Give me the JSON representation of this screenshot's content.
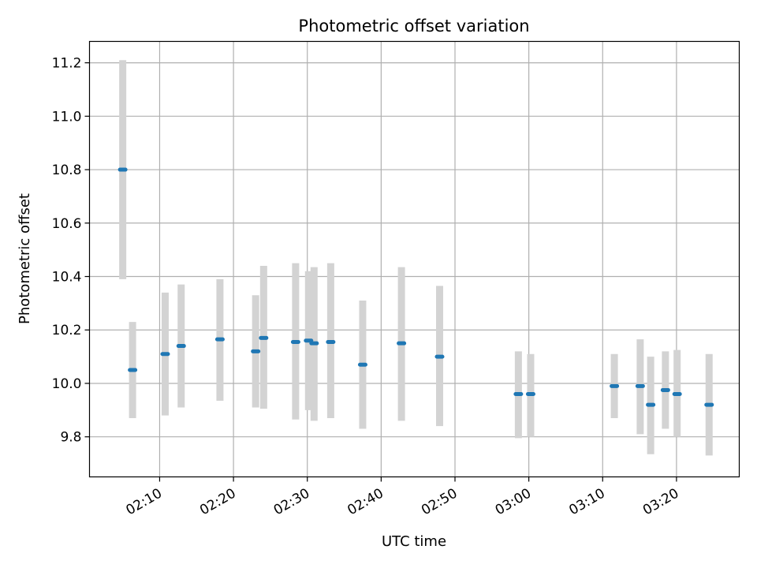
{
  "chart_data": {
    "type": "scatter",
    "title": "Photometric offset variation",
    "xlabel": "UTC time",
    "ylabel": "Photometric offset",
    "xlim": [
      "02:00:30",
      "03:28:30"
    ],
    "ylim": [
      9.65,
      11.28
    ],
    "grid": true,
    "x_ticks": [
      "02:10",
      "02:20",
      "02:30",
      "02:40",
      "02:50",
      "03:00",
      "03:10",
      "03:20"
    ],
    "y_ticks": [
      9.8,
      10.0,
      10.2,
      10.4,
      10.6,
      10.8,
      11.0,
      11.2
    ],
    "marker_color": "#1f77b4",
    "errorbar_color": "#d3d3d3",
    "points": [
      {
        "t": "02:05:00",
        "y": 10.8,
        "lo": 10.39,
        "hi": 11.21
      },
      {
        "t": "02:06:20",
        "y": 10.05,
        "lo": 9.87,
        "hi": 10.23
      },
      {
        "t": "02:10:45",
        "y": 10.11,
        "lo": 9.88,
        "hi": 10.34
      },
      {
        "t": "02:12:55",
        "y": 10.14,
        "lo": 9.91,
        "hi": 10.37
      },
      {
        "t": "02:18:10",
        "y": 10.165,
        "lo": 9.935,
        "hi": 10.39
      },
      {
        "t": "02:23:00",
        "y": 10.12,
        "lo": 9.91,
        "hi": 10.33
      },
      {
        "t": "02:24:05",
        "y": 10.17,
        "lo": 9.905,
        "hi": 10.44
      },
      {
        "t": "02:28:25",
        "y": 10.155,
        "lo": 9.865,
        "hi": 10.45
      },
      {
        "t": "02:30:10",
        "y": 10.16,
        "lo": 9.9,
        "hi": 10.42
      },
      {
        "t": "02:30:55",
        "y": 10.15,
        "lo": 9.86,
        "hi": 10.435
      },
      {
        "t": "02:33:10",
        "y": 10.155,
        "lo": 9.87,
        "hi": 10.45
      },
      {
        "t": "02:37:30",
        "y": 10.07,
        "lo": 9.83,
        "hi": 10.31
      },
      {
        "t": "02:42:45",
        "y": 10.15,
        "lo": 9.86,
        "hi": 10.435
      },
      {
        "t": "02:47:55",
        "y": 10.1,
        "lo": 9.84,
        "hi": 10.365
      },
      {
        "t": "02:58:35",
        "y": 9.96,
        "lo": 9.795,
        "hi": 10.12
      },
      {
        "t": "03:00:15",
        "y": 9.96,
        "lo": 9.8,
        "hi": 10.11
      },
      {
        "t": "03:11:35",
        "y": 9.99,
        "lo": 9.87,
        "hi": 10.11
      },
      {
        "t": "03:15:05",
        "y": 9.99,
        "lo": 9.81,
        "hi": 10.165
      },
      {
        "t": "03:16:30",
        "y": 9.92,
        "lo": 9.735,
        "hi": 10.1
      },
      {
        "t": "03:18:30",
        "y": 9.975,
        "lo": 9.83,
        "hi": 10.12
      },
      {
        "t": "03:20:05",
        "y": 9.96,
        "lo": 9.8,
        "hi": 10.125
      },
      {
        "t": "03:24:25",
        "y": 9.92,
        "lo": 9.73,
        "hi": 10.11
      }
    ]
  }
}
